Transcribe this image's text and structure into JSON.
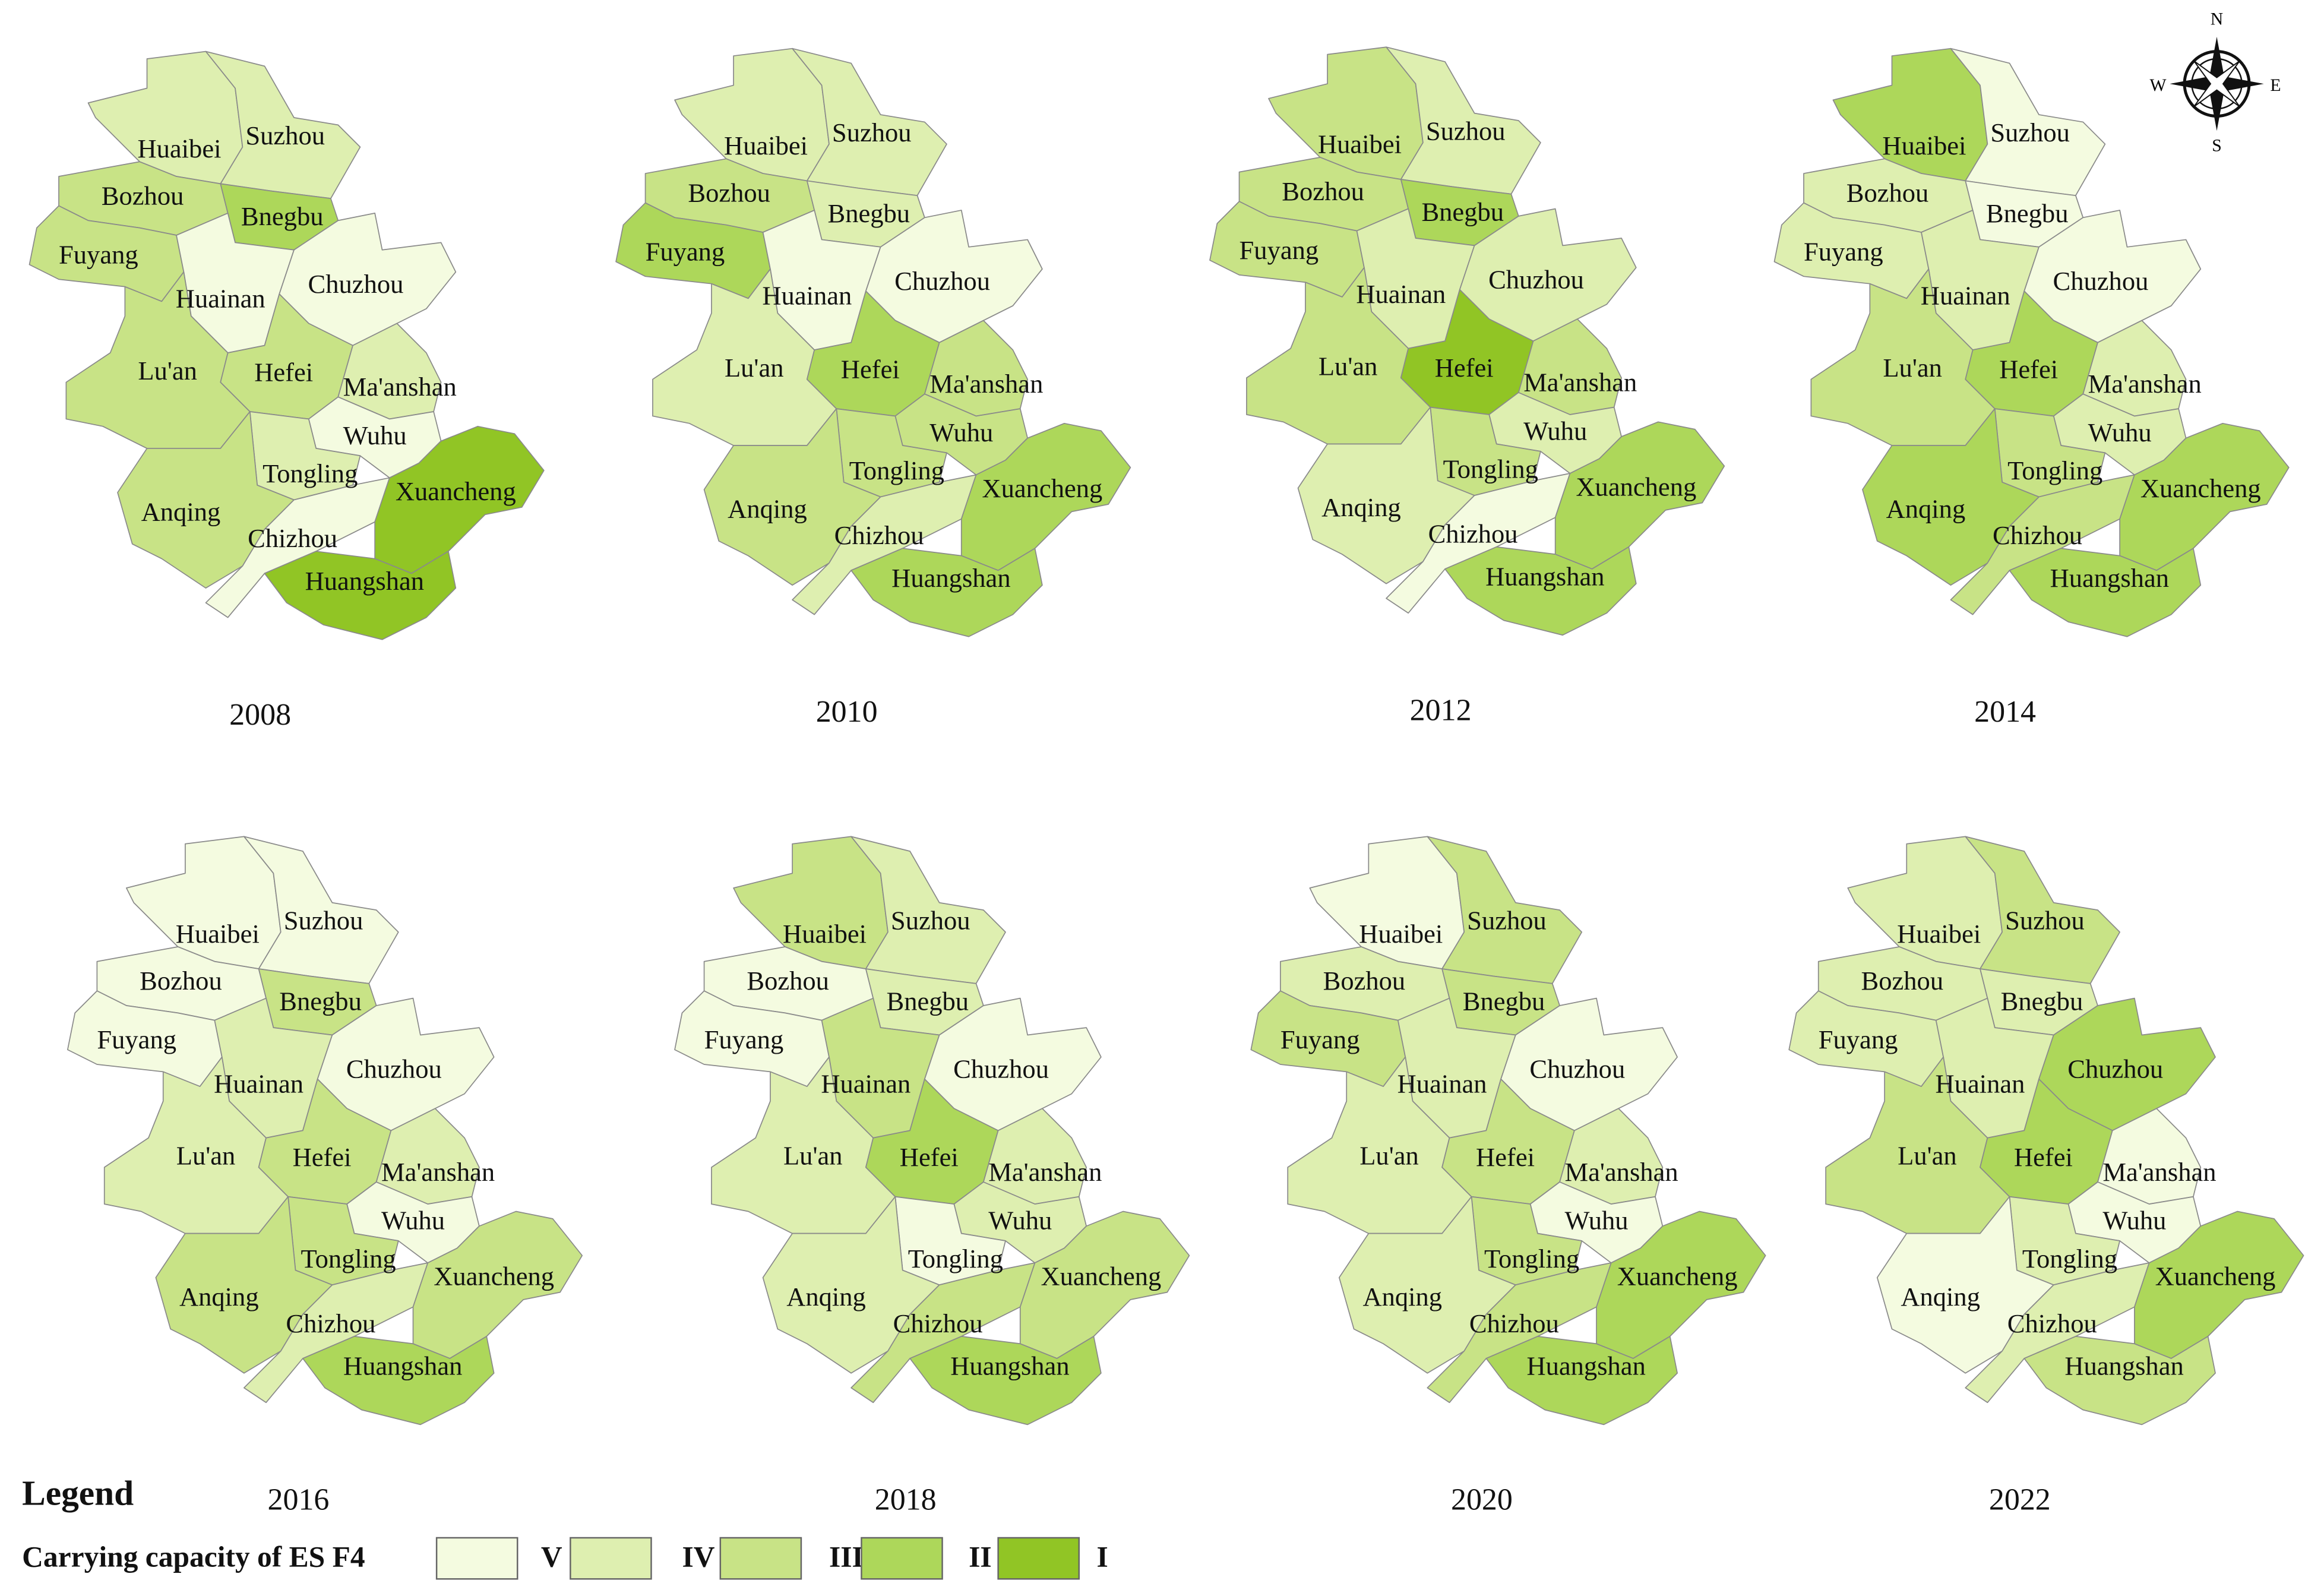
{
  "legend": {
    "title": "Legend",
    "label": "Carrying capacity of ES  F4",
    "classes": [
      {
        "name": "V",
        "color": "#f4fbe0"
      },
      {
        "name": "IV",
        "color": "#deefb0"
      },
      {
        "name": "III",
        "color": "#c8e386"
      },
      {
        "name": "II",
        "color": "#add75a"
      },
      {
        "name": "I",
        "color": "#91c525"
      }
    ]
  },
  "compass": {
    "n": "N",
    "e": "E",
    "s": "S",
    "w": "W"
  },
  "maps": [
    {
      "year": "2008",
      "regions": [
        {
          "name": "Huaibei",
          "class": "IV"
        },
        {
          "name": "Suzhou",
          "class": "IV"
        },
        {
          "name": "Bozhou",
          "class": "III"
        },
        {
          "name": "Bnegbu",
          "class": "II"
        },
        {
          "name": "Fuyang",
          "class": "III"
        },
        {
          "name": "Huainan",
          "class": "V"
        },
        {
          "name": "Chuzhou",
          "class": "V"
        },
        {
          "name": "Lu'an",
          "class": "III"
        },
        {
          "name": "Hefei",
          "class": "III"
        },
        {
          "name": "Ma'anshan",
          "class": "IV"
        },
        {
          "name": "Wuhu",
          "class": "V"
        },
        {
          "name": "Tongling",
          "class": "IV"
        },
        {
          "name": "Anqing",
          "class": "III"
        },
        {
          "name": "Chizhou",
          "class": "V"
        },
        {
          "name": "Xuancheng",
          "class": "I"
        },
        {
          "name": "Huangshan",
          "class": "I"
        }
      ]
    },
    {
      "year": "2010",
      "regions": [
        {
          "name": "Huaibei",
          "class": "IV"
        },
        {
          "name": "Suzhou",
          "class": "IV"
        },
        {
          "name": "Bozhou",
          "class": "III"
        },
        {
          "name": "Bnegbu",
          "class": "IV"
        },
        {
          "name": "Fuyang",
          "class": "II"
        },
        {
          "name": "Huainan",
          "class": "V"
        },
        {
          "name": "Chuzhou",
          "class": "V"
        },
        {
          "name": "Lu'an",
          "class": "IV"
        },
        {
          "name": "Hefei",
          "class": "II"
        },
        {
          "name": "Ma'anshan",
          "class": "III"
        },
        {
          "name": "Wuhu",
          "class": "III"
        },
        {
          "name": "Tongling",
          "class": "III"
        },
        {
          "name": "Anqing",
          "class": "III"
        },
        {
          "name": "Chizhou",
          "class": "IV"
        },
        {
          "name": "Xuancheng",
          "class": "II"
        },
        {
          "name": "Huangshan",
          "class": "II"
        }
      ]
    },
    {
      "year": "2012",
      "regions": [
        {
          "name": "Huaibei",
          "class": "III"
        },
        {
          "name": "Suzhou",
          "class": "IV"
        },
        {
          "name": "Bozhou",
          "class": "III"
        },
        {
          "name": "Bnegbu",
          "class": "II"
        },
        {
          "name": "Fuyang",
          "class": "III"
        },
        {
          "name": "Huainan",
          "class": "IV"
        },
        {
          "name": "Chuzhou",
          "class": "IV"
        },
        {
          "name": "Lu'an",
          "class": "III"
        },
        {
          "name": "Hefei",
          "class": "I"
        },
        {
          "name": "Ma'anshan",
          "class": "III"
        },
        {
          "name": "Wuhu",
          "class": "IV"
        },
        {
          "name": "Tongling",
          "class": "III"
        },
        {
          "name": "Anqing",
          "class": "IV"
        },
        {
          "name": "Chizhou",
          "class": "V"
        },
        {
          "name": "Xuancheng",
          "class": "II"
        },
        {
          "name": "Huangshan",
          "class": "II"
        }
      ]
    },
    {
      "year": "2014",
      "regions": [
        {
          "name": "Huaibei",
          "class": "II"
        },
        {
          "name": "Suzhou",
          "class": "V"
        },
        {
          "name": "Bozhou",
          "class": "IV"
        },
        {
          "name": "Bnegbu",
          "class": "V"
        },
        {
          "name": "Fuyang",
          "class": "IV"
        },
        {
          "name": "Huainan",
          "class": "IV"
        },
        {
          "name": "Chuzhou",
          "class": "V"
        },
        {
          "name": "Lu'an",
          "class": "III"
        },
        {
          "name": "Hefei",
          "class": "II"
        },
        {
          "name": "Ma'anshan",
          "class": "IV"
        },
        {
          "name": "Wuhu",
          "class": "IV"
        },
        {
          "name": "Tongling",
          "class": "III"
        },
        {
          "name": "Anqing",
          "class": "II"
        },
        {
          "name": "Chizhou",
          "class": "III"
        },
        {
          "name": "Xuancheng",
          "class": "II"
        },
        {
          "name": "Huangshan",
          "class": "II"
        }
      ]
    },
    {
      "year": "2016",
      "regions": [
        {
          "name": "Huaibei",
          "class": "V"
        },
        {
          "name": "Suzhou",
          "class": "V"
        },
        {
          "name": "Bozhou",
          "class": "V"
        },
        {
          "name": "Bnegbu",
          "class": "III"
        },
        {
          "name": "Fuyang",
          "class": "V"
        },
        {
          "name": "Huainan",
          "class": "IV"
        },
        {
          "name": "Chuzhou",
          "class": "V"
        },
        {
          "name": "Lu'an",
          "class": "IV"
        },
        {
          "name": "Hefei",
          "class": "III"
        },
        {
          "name": "Ma'anshan",
          "class": "IV"
        },
        {
          "name": "Wuhu",
          "class": "V"
        },
        {
          "name": "Tongling",
          "class": "III"
        },
        {
          "name": "Anqing",
          "class": "III"
        },
        {
          "name": "Chizhou",
          "class": "IV"
        },
        {
          "name": "Xuancheng",
          "class": "III"
        },
        {
          "name": "Huangshan",
          "class": "II"
        }
      ]
    },
    {
      "year": "2018",
      "regions": [
        {
          "name": "Huaibei",
          "class": "III"
        },
        {
          "name": "Suzhou",
          "class": "IV"
        },
        {
          "name": "Bozhou",
          "class": "V"
        },
        {
          "name": "Bnegbu",
          "class": "IV"
        },
        {
          "name": "Fuyang",
          "class": "V"
        },
        {
          "name": "Huainan",
          "class": "III"
        },
        {
          "name": "Chuzhou",
          "class": "V"
        },
        {
          "name": "Lu'an",
          "class": "IV"
        },
        {
          "name": "Hefei",
          "class": "II"
        },
        {
          "name": "Ma'anshan",
          "class": "IV"
        },
        {
          "name": "Wuhu",
          "class": "IV"
        },
        {
          "name": "Tongling",
          "class": "V"
        },
        {
          "name": "Anqing",
          "class": "IV"
        },
        {
          "name": "Chizhou",
          "class": "III"
        },
        {
          "name": "Xuancheng",
          "class": "III"
        },
        {
          "name": "Huangshan",
          "class": "II"
        }
      ]
    },
    {
      "year": "2020",
      "regions": [
        {
          "name": "Huaibei",
          "class": "V"
        },
        {
          "name": "Suzhou",
          "class": "III"
        },
        {
          "name": "Bozhou",
          "class": "IV"
        },
        {
          "name": "Bnegbu",
          "class": "III"
        },
        {
          "name": "Fuyang",
          "class": "III"
        },
        {
          "name": "Huainan",
          "class": "IV"
        },
        {
          "name": "Chuzhou",
          "class": "V"
        },
        {
          "name": "Lu'an",
          "class": "IV"
        },
        {
          "name": "Hefei",
          "class": "III"
        },
        {
          "name": "Ma'anshan",
          "class": "IV"
        },
        {
          "name": "Wuhu",
          "class": "V"
        },
        {
          "name": "Tongling",
          "class": "III"
        },
        {
          "name": "Anqing",
          "class": "IV"
        },
        {
          "name": "Chizhou",
          "class": "III"
        },
        {
          "name": "Xuancheng",
          "class": "II"
        },
        {
          "name": "Huangshan",
          "class": "II"
        }
      ]
    },
    {
      "year": "2022",
      "regions": [
        {
          "name": "Huaibei",
          "class": "IV"
        },
        {
          "name": "Suzhou",
          "class": "III"
        },
        {
          "name": "Bozhou",
          "class": "IV"
        },
        {
          "name": "Bnegbu",
          "class": "IV"
        },
        {
          "name": "Fuyang",
          "class": "IV"
        },
        {
          "name": "Huainan",
          "class": "IV"
        },
        {
          "name": "Chuzhou",
          "class": "II"
        },
        {
          "name": "Lu'an",
          "class": "III"
        },
        {
          "name": "Hefei",
          "class": "II"
        },
        {
          "name": "Ma'anshan",
          "class": "V"
        },
        {
          "name": "Wuhu",
          "class": "V"
        },
        {
          "name": "Tongling",
          "class": "IV"
        },
        {
          "name": "Anqing",
          "class": "V"
        },
        {
          "name": "Chizhou",
          "class": "IV"
        },
        {
          "name": "Xuancheng",
          "class": "II"
        },
        {
          "name": "Huangshan",
          "class": "III"
        }
      ]
    }
  ]
}
